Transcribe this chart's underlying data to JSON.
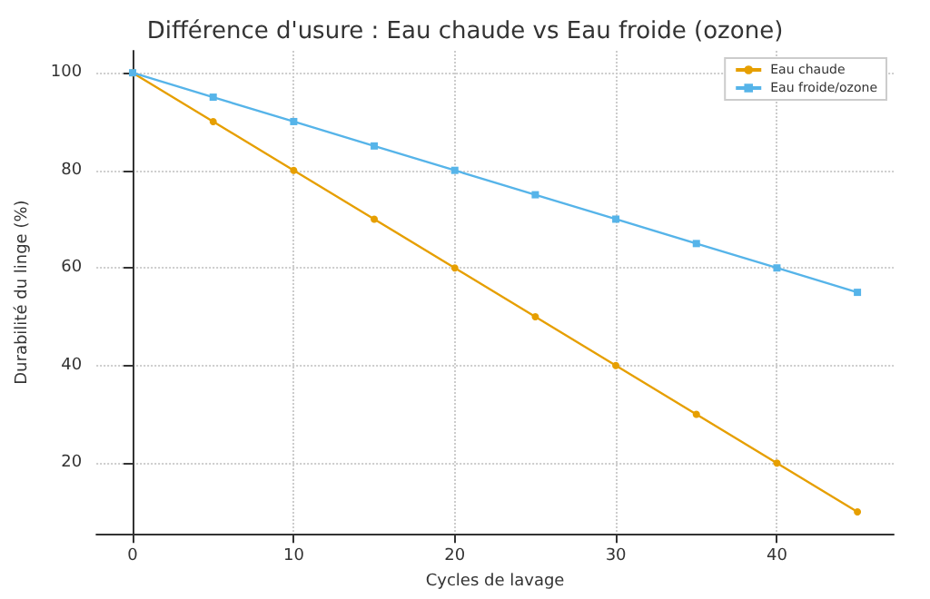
{
  "chart_data": {
    "type": "line",
    "title": "Différence d'usure : Eau chaude vs Eau froide (ozone)",
    "xlabel": "Cycles de lavage",
    "ylabel": "Durabilité du linge (%)",
    "x": [
      0,
      5,
      10,
      15,
      20,
      25,
      30,
      35,
      40,
      45
    ],
    "series": [
      {
        "name": "Eau chaude",
        "color": "#e69f00",
        "marker": "circle",
        "values": [
          100,
          90,
          80,
          70,
          60,
          50,
          40,
          30,
          20,
          10
        ]
      },
      {
        "name": "Eau froide/ozone",
        "color": "#56b4e9",
        "marker": "square",
        "values": [
          100,
          95,
          90,
          85,
          80,
          75,
          70,
          65,
          60,
          55
        ]
      }
    ],
    "xlim": [
      -2.25,
      47.25
    ],
    "xticks": [
      0,
      10,
      20,
      30,
      40
    ],
    "ylim": [
      5.5,
      104.5
    ],
    "yticks": [
      20,
      40,
      60,
      80,
      100
    ],
    "grid": true,
    "legend": "top right",
    "line_style": "solid"
  }
}
